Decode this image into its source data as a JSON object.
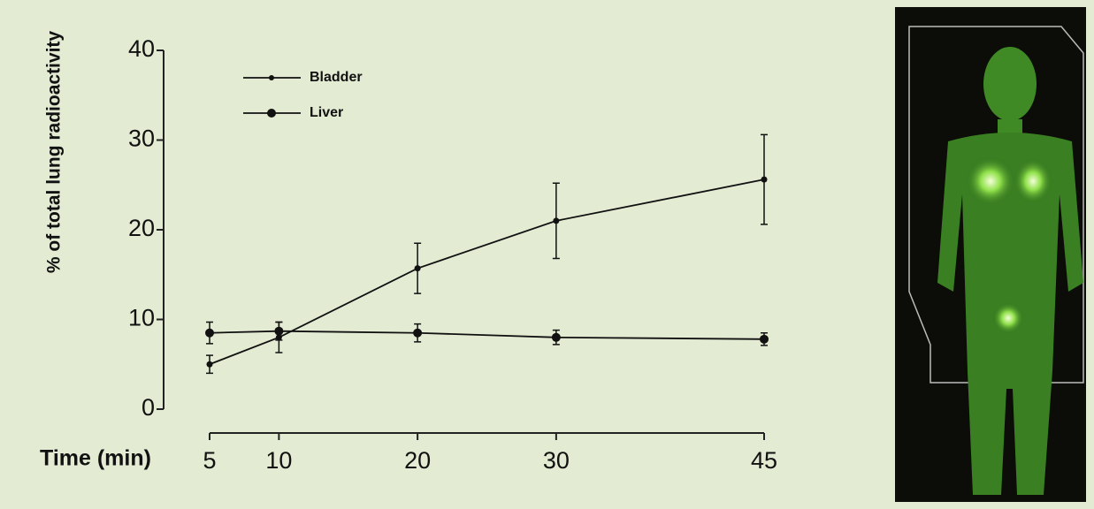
{
  "chart_data": {
    "type": "line",
    "y_label": "% of total lung radioactivity",
    "x_label": "Time (min)",
    "x": [
      5,
      10,
      20,
      30,
      45
    ],
    "xlim": [
      5,
      45
    ],
    "xticks": [
      5,
      10,
      20,
      30,
      45
    ],
    "ylim": [
      0,
      40
    ],
    "yticks": [
      0,
      10,
      20,
      30,
      40
    ],
    "series": [
      {
        "name": "Bladder",
        "color": "#111111",
        "values": [
          5,
          8,
          15.7,
          21,
          25.6
        ],
        "errors": [
          1,
          1.7,
          2.8,
          4.2,
          5
        ]
      },
      {
        "name": "Liver",
        "color": "#111111",
        "values": [
          8.5,
          8.7,
          8.5,
          8,
          7.8
        ],
        "errors": [
          1.2,
          1,
          1,
          0.8,
          0.7
        ]
      }
    ]
  }
}
